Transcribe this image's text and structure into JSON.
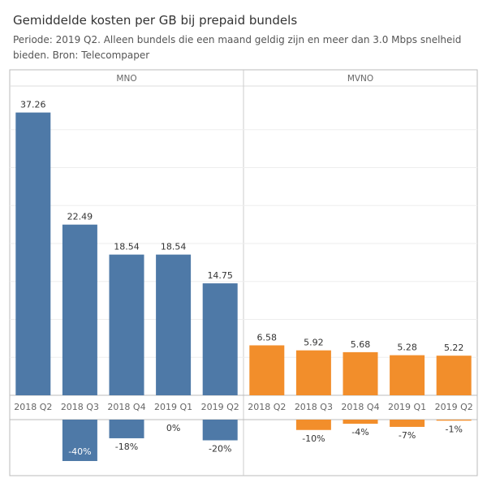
{
  "header": {
    "title": "Gemiddelde kosten per GB bij prepaid bundels",
    "subtitle": "Periode: 2019 Q2. Alleen bundels die een maand geldig zijn en meer dan 3.0 Mbps snelheid bieden. Bron: Telecompaper"
  },
  "colors": {
    "mno": "#4e79a7",
    "mvno": "#f28e2b"
  },
  "chart_data": [
    {
      "type": "bar",
      "panels": [
        "MNO",
        "MVNO"
      ],
      "categories": [
        "2018 Q2",
        "2018 Q3",
        "2018 Q4",
        "2019 Q1",
        "2019 Q2"
      ],
      "series": [
        {
          "name": "MNO",
          "values": [
            37.26,
            22.49,
            18.54,
            18.54,
            14.75
          ],
          "labels": [
            "37.26",
            "22.49",
            "18.54",
            "18.54",
            "14.75"
          ]
        },
        {
          "name": "MVNO",
          "values": [
            6.58,
            5.92,
            5.68,
            5.28,
            5.22
          ],
          "labels": [
            "6.58",
            "5.92",
            "5.68",
            "5.28",
            "5.22"
          ]
        }
      ],
      "ylim": [
        0,
        40
      ]
    },
    {
      "type": "bar",
      "description_units": "percent change",
      "categories": [
        "2018 Q2",
        "2018 Q3",
        "2018 Q4",
        "2019 Q1",
        "2019 Q2"
      ],
      "series": [
        {
          "name": "MNO",
          "values": [
            null,
            -40,
            -18,
            0,
            -20
          ],
          "labels": [
            "",
            "-40%",
            "-18%",
            "0%",
            "-20%"
          ]
        },
        {
          "name": "MVNO",
          "values": [
            null,
            -10,
            -4,
            -7,
            -1
          ],
          "labels": [
            "",
            "-10%",
            "-4%",
            "-7%",
            "-1%"
          ]
        }
      ],
      "ylim": [
        -45,
        0
      ]
    }
  ]
}
